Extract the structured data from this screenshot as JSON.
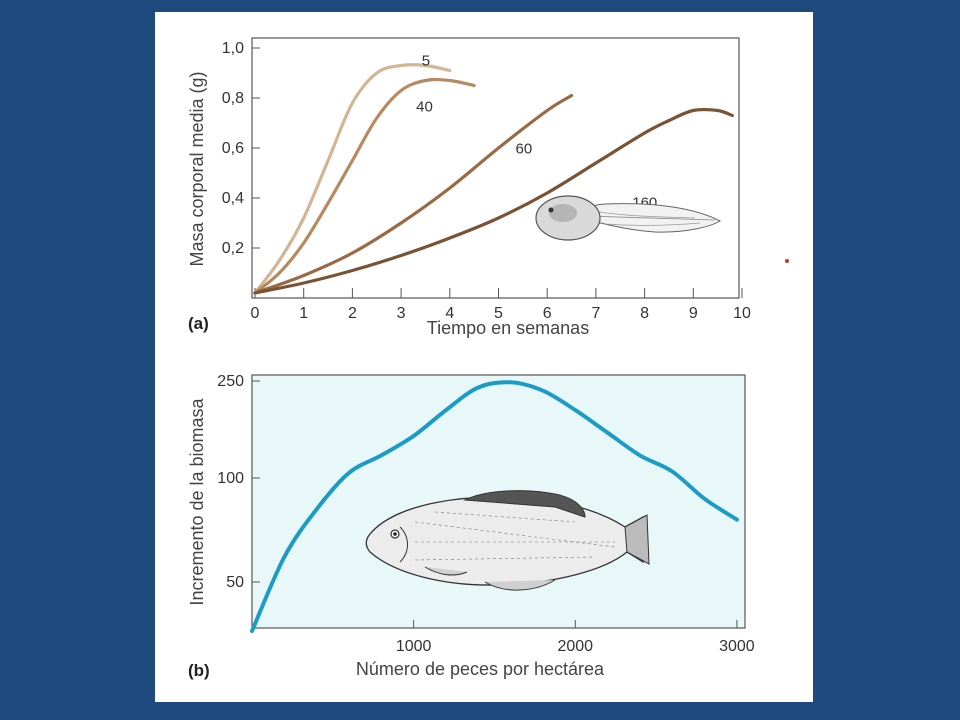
{
  "colors": {
    "background": "#1f4a7e",
    "page": "#ffffff",
    "panel_b_fill": "#e8f8f8",
    "panel_b_line": "#1c9cc4",
    "series": [
      "#d3b594",
      "#b68a5e",
      "#9a6a45",
      "#7a5234"
    ]
  },
  "icons": {
    "panel_a": "tadpole-illustration",
    "panel_b": "fish-illustration"
  },
  "chart_data": [
    {
      "type": "line",
      "panel_label": "(a)",
      "xlabel": "Tiempo en semanas",
      "ylabel": "Masa corporal media (g)",
      "xlim": [
        0,
        10
      ],
      "ylim": [
        0,
        1.0
      ],
      "x_ticks": [
        0,
        1,
        2,
        3,
        4,
        5,
        6,
        7,
        8,
        9,
        10
      ],
      "x_tick_labels": [
        "0",
        "1",
        "2",
        "3",
        "4",
        "5",
        "6",
        "7",
        "8",
        "9",
        "10"
      ],
      "y_ticks": [
        0.2,
        0.4,
        0.6,
        0.8,
        1.0
      ],
      "y_tick_labels": [
        "0,2",
        "0,4",
        "0,6",
        "0,8",
        "1,0"
      ],
      "grid": false,
      "series": [
        {
          "name": "5",
          "points": [
            [
              0,
              0.02
            ],
            [
              0.5,
              0.15
            ],
            [
              1,
              0.32
            ],
            [
              1.5,
              0.55
            ],
            [
              2,
              0.78
            ],
            [
              2.5,
              0.9
            ],
            [
              3,
              0.93
            ],
            [
              3.5,
              0.93
            ],
            [
              4,
              0.91
            ]
          ]
        },
        {
          "name": "40",
          "points": [
            [
              0,
              0.02
            ],
            [
              0.5,
              0.1
            ],
            [
              1,
              0.22
            ],
            [
              1.5,
              0.38
            ],
            [
              2,
              0.55
            ],
            [
              2.5,
              0.72
            ],
            [
              3,
              0.83
            ],
            [
              3.5,
              0.87
            ],
            [
              4,
              0.87
            ],
            [
              4.5,
              0.85
            ]
          ]
        },
        {
          "name": "60",
          "points": [
            [
              0,
              0.02
            ],
            [
              1,
              0.09
            ],
            [
              2,
              0.18
            ],
            [
              3,
              0.3
            ],
            [
              4,
              0.44
            ],
            [
              5,
              0.6
            ],
            [
              6,
              0.75
            ],
            [
              6.5,
              0.81
            ]
          ]
        },
        {
          "name": "160",
          "points": [
            [
              0,
              0.02
            ],
            [
              1,
              0.06
            ],
            [
              2,
              0.11
            ],
            [
              3,
              0.17
            ],
            [
              4,
              0.24
            ],
            [
              5,
              0.32
            ],
            [
              6,
              0.42
            ],
            [
              7,
              0.54
            ],
            [
              8,
              0.66
            ],
            [
              8.5,
              0.71
            ],
            [
              9,
              0.75
            ],
            [
              9.5,
              0.75
            ],
            [
              9.8,
              0.73
            ]
          ]
        }
      ]
    },
    {
      "type": "line",
      "panel_label": "(b)",
      "xlabel": "Número de peces por hectárea",
      "ylabel": "Incremento de la biomasa",
      "xlim": [
        0,
        3050
      ],
      "y_ticks": [
        50,
        100,
        250
      ],
      "y_tick_labels": [
        "50",
        "100",
        "250"
      ],
      "x_ticks": [
        1000,
        2000,
        3000
      ],
      "x_tick_labels": [
        "1000",
        "2000",
        "3000"
      ],
      "grid": false,
      "series": [
        {
          "name": "",
          "points": [
            [
              0,
              35
            ],
            [
              200,
              62
            ],
            [
              400,
              85
            ],
            [
              600,
              108
            ],
            [
              800,
              135
            ],
            [
              1000,
              165
            ],
            [
              1200,
              205
            ],
            [
              1400,
              240
            ],
            [
              1600,
              248
            ],
            [
              1800,
              235
            ],
            [
              2000,
              205
            ],
            [
              2200,
              170
            ],
            [
              2400,
              135
            ],
            [
              2600,
              110
            ],
            [
              2800,
              90
            ],
            [
              3000,
              80
            ]
          ]
        }
      ]
    }
  ]
}
